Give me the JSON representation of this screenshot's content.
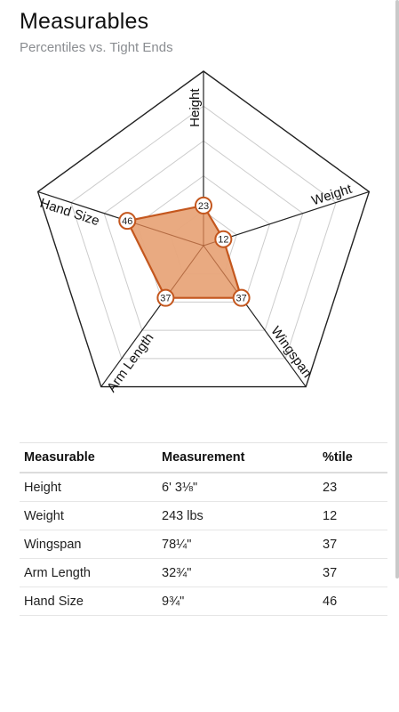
{
  "header": {
    "title": "Measurables",
    "subtitle": "Percentiles vs. Tight Ends"
  },
  "colors": {
    "fill": "#e8a57a",
    "stroke": "#c4571e",
    "grid": "#cccccc",
    "outer": "#222222"
  },
  "chart_data": {
    "type": "radar",
    "axes": [
      "Height",
      "Weight",
      "Wingspan",
      "Arm Length",
      "Hand Size"
    ],
    "values": [
      23,
      12,
      37,
      37,
      46
    ],
    "range": [
      0,
      100
    ],
    "grid_levels": 5,
    "value_labels": true
  },
  "table": {
    "headers": [
      "Measurable",
      "Measurement",
      "%tile"
    ],
    "rows": [
      [
        "Height",
        "6' 3⅛\"",
        "23"
      ],
      [
        "Weight",
        "243 lbs",
        "12"
      ],
      [
        "Wingspan",
        "78¼\"",
        "37"
      ],
      [
        "Arm Length",
        "32¾\"",
        "37"
      ],
      [
        "Hand Size",
        "9¾\"",
        "46"
      ]
    ]
  }
}
